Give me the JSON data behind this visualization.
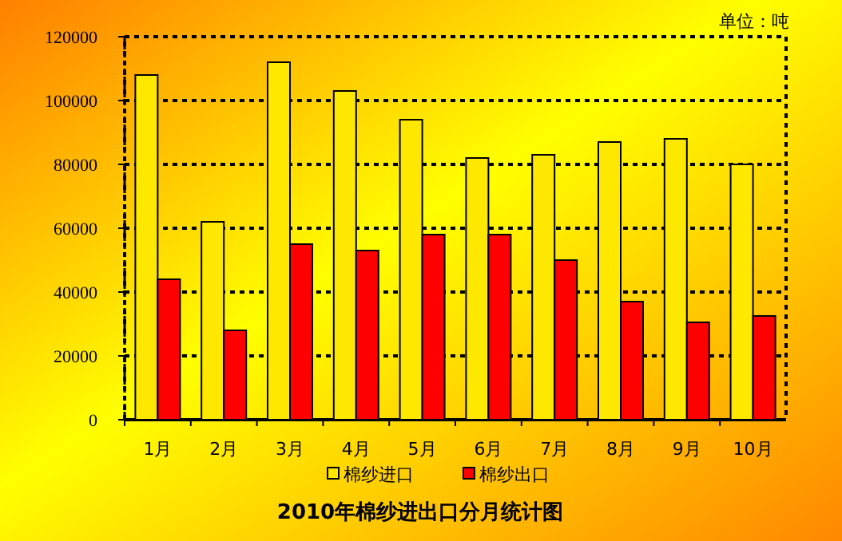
{
  "chart_data": {
    "type": "bar",
    "title": "2010年棉纱进出口分月统计图",
    "ylabel": "单位：吨",
    "categories": [
      "1月",
      "2月",
      "3月",
      "4月",
      "5月",
      "6月",
      "7月",
      "8月",
      "9月",
      "10月"
    ],
    "series": [
      {
        "name": "棉纱进口",
        "color": "#ffe800",
        "values": [
          108000,
          62000,
          112000,
          103000,
          94000,
          82000,
          83000,
          87000,
          88000,
          80000
        ]
      },
      {
        "name": "棉纱出口",
        "color": "#ff0000",
        "values": [
          44000,
          28000,
          55000,
          53000,
          58000,
          58000,
          50000,
          37000,
          30500,
          32500
        ]
      }
    ],
    "ylim": [
      0,
      120000
    ],
    "yticks": [
      0,
      20000,
      40000,
      60000,
      80000,
      100000,
      120000
    ],
    "grid": "y",
    "legend": "bottom"
  }
}
